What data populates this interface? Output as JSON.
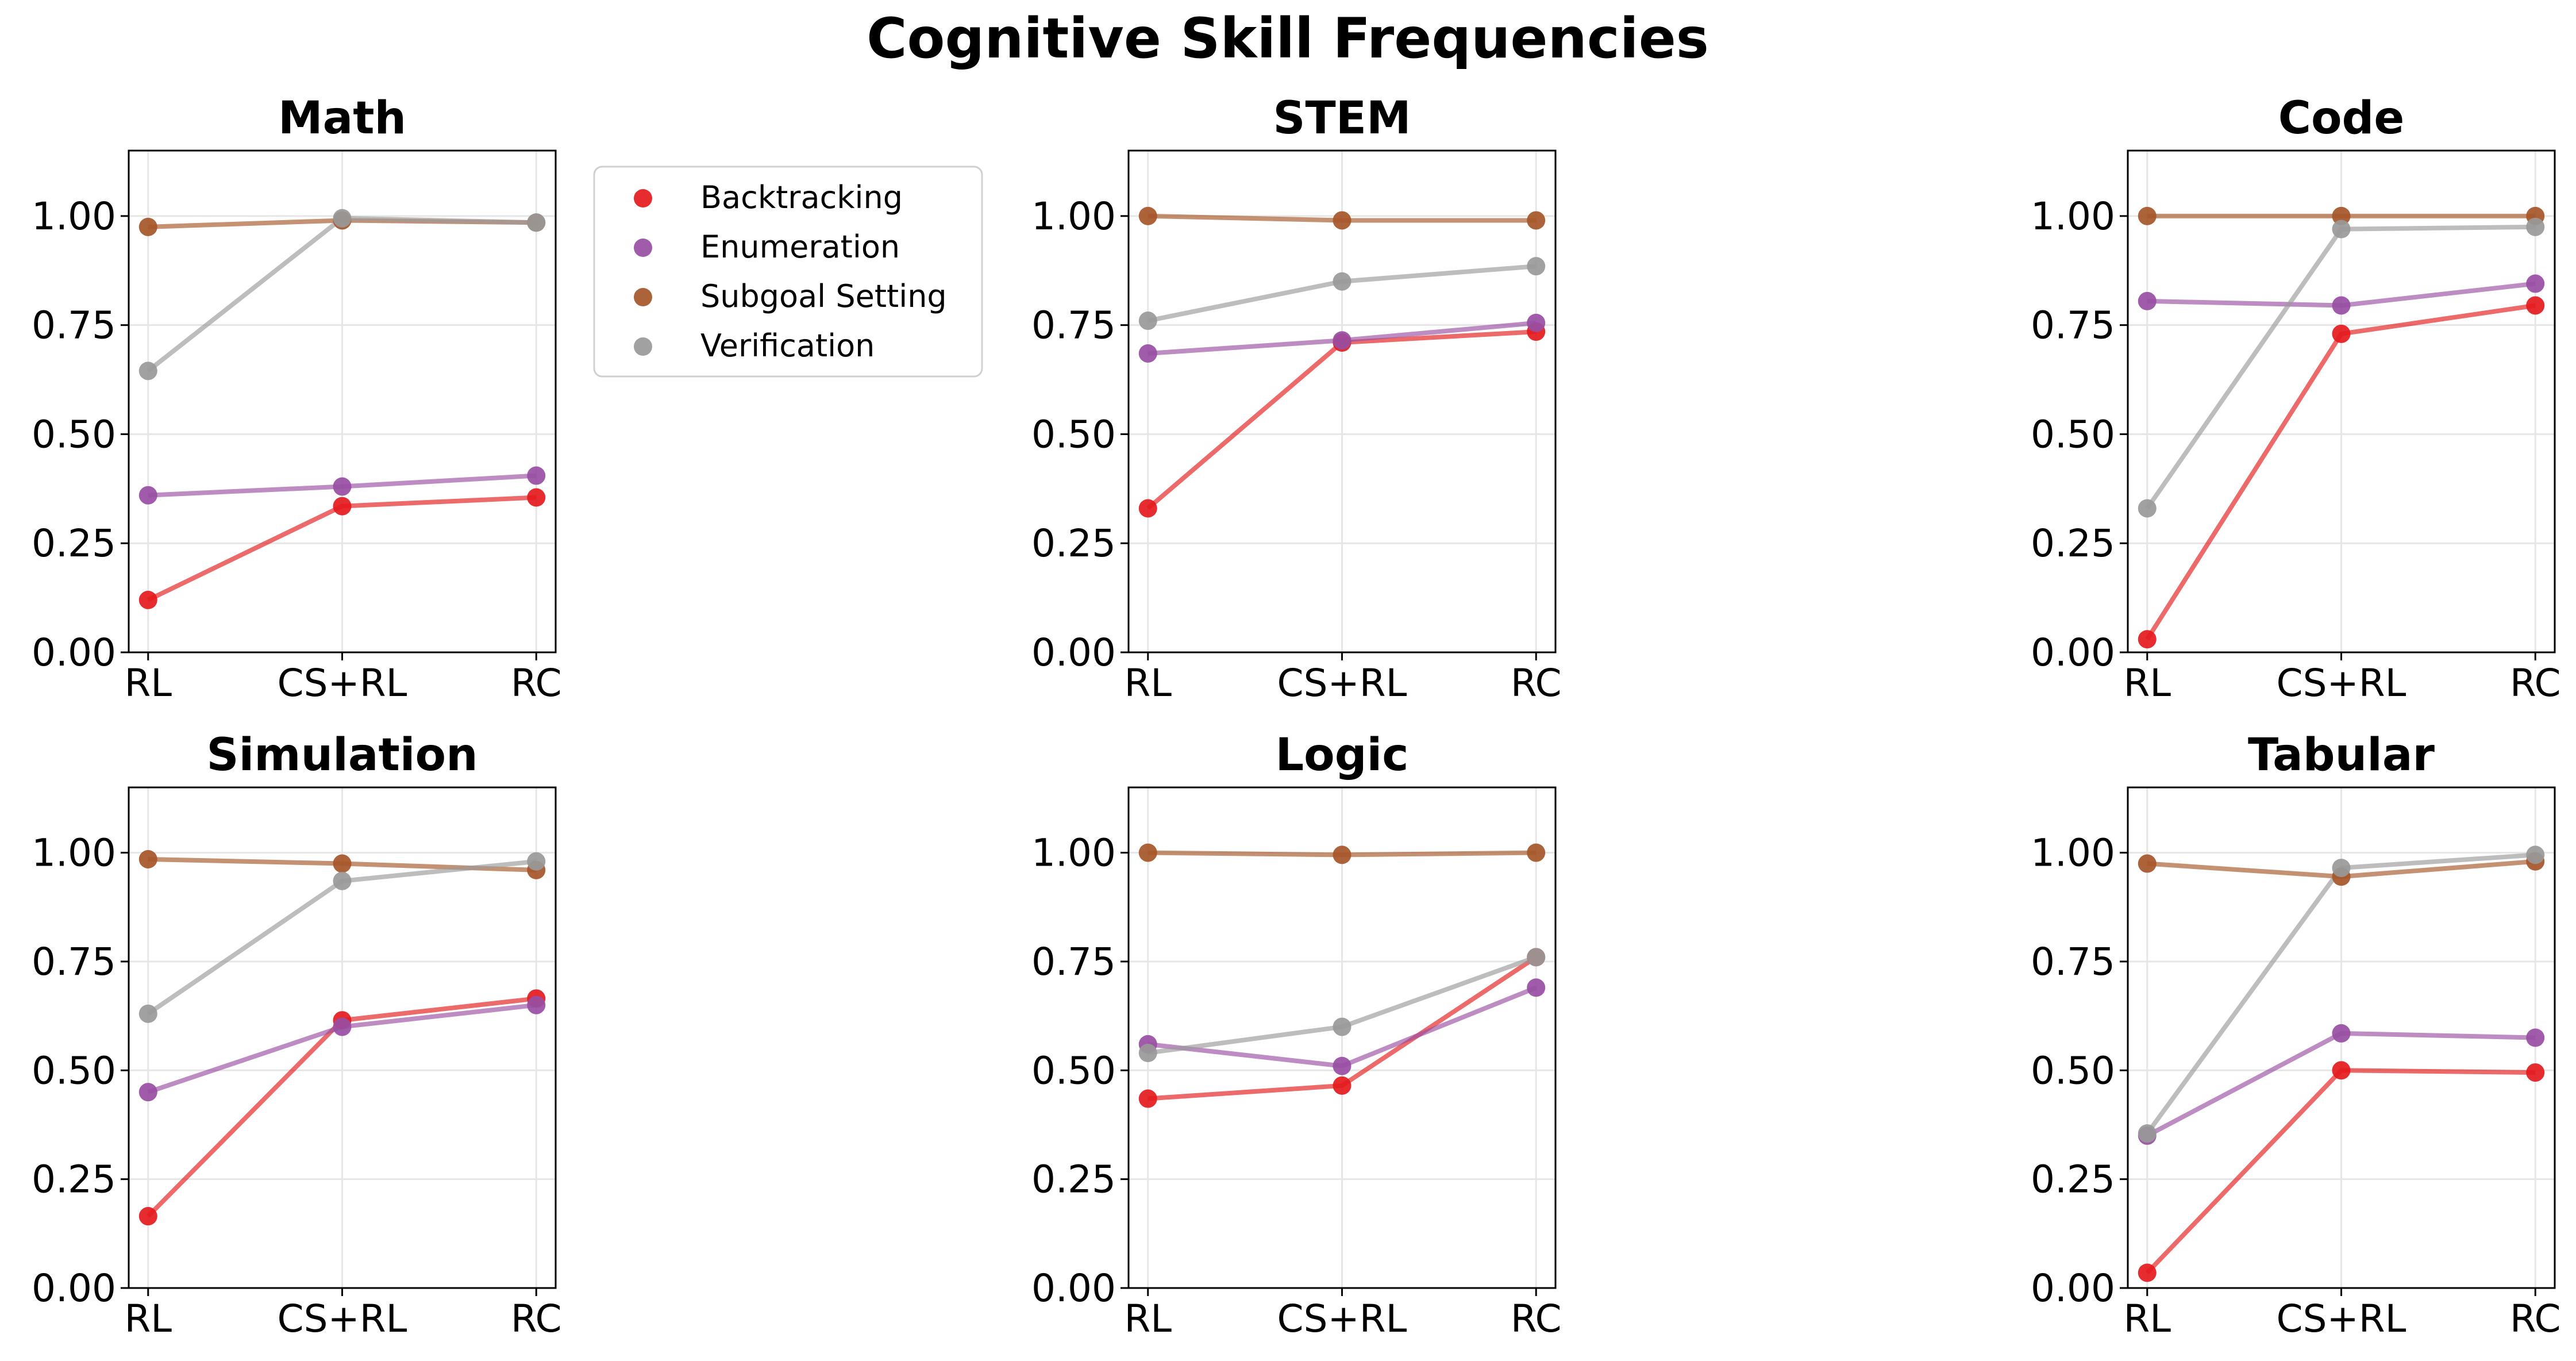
{
  "title": "Cognitive Skill Frequencies",
  "colors": {
    "Backtracking": "#e41a1c",
    "Enumeration": "#984ea3",
    "Subgoal Setting": "#a65628",
    "Verification": "#999999"
  },
  "legend": {
    "placement": "right of Math panel",
    "entries": [
      "Backtracking",
      "Enumeration",
      "Subgoal Setting",
      "Verification"
    ]
  },
  "chart_data": [
    {
      "type": "line",
      "title": "Math",
      "categories": [
        "RL",
        "CS+RL",
        "RC"
      ],
      "yticks": [
        "0.00",
        "0.25",
        "0.50",
        "0.75",
        "1.00"
      ],
      "ylim": [
        0,
        1.15
      ],
      "grid": true,
      "series": [
        {
          "name": "Backtracking",
          "values": [
            0.12,
            0.335,
            0.355
          ]
        },
        {
          "name": "Enumeration",
          "values": [
            0.36,
            0.38,
            0.405
          ]
        },
        {
          "name": "Subgoal Setting",
          "values": [
            0.975,
            0.99,
            0.985
          ]
        },
        {
          "name": "Verification",
          "values": [
            0.645,
            0.995,
            0.985
          ]
        }
      ]
    },
    {
      "type": "line",
      "title": "STEM",
      "categories": [
        "RL",
        "CS+RL",
        "RC"
      ],
      "yticks": [
        "0.00",
        "0.25",
        "0.50",
        "0.75",
        "1.00"
      ],
      "ylim": [
        0,
        1.15
      ],
      "grid": true,
      "series": [
        {
          "name": "Backtracking",
          "values": [
            0.33,
            0.71,
            0.735
          ]
        },
        {
          "name": "Enumeration",
          "values": [
            0.685,
            0.715,
            0.755
          ]
        },
        {
          "name": "Subgoal Setting",
          "values": [
            1.0,
            0.99,
            0.99
          ]
        },
        {
          "name": "Verification",
          "values": [
            0.76,
            0.85,
            0.885
          ]
        }
      ]
    },
    {
      "type": "line",
      "title": "Code",
      "categories": [
        "RL",
        "CS+RL",
        "RC"
      ],
      "yticks": [
        "0.00",
        "0.25",
        "0.50",
        "0.75",
        "1.00"
      ],
      "ylim": [
        0,
        1.15
      ],
      "grid": true,
      "series": [
        {
          "name": "Backtracking",
          "values": [
            0.03,
            0.73,
            0.795
          ]
        },
        {
          "name": "Enumeration",
          "values": [
            0.805,
            0.795,
            0.845
          ]
        },
        {
          "name": "Subgoal Setting",
          "values": [
            1.0,
            1.0,
            1.0
          ]
        },
        {
          "name": "Verification",
          "values": [
            0.33,
            0.97,
            0.975
          ]
        }
      ]
    },
    {
      "type": "line",
      "title": "Simulation",
      "categories": [
        "RL",
        "CS+RL",
        "RC"
      ],
      "yticks": [
        "0.00",
        "0.25",
        "0.50",
        "0.75",
        "1.00"
      ],
      "ylim": [
        0,
        1.15
      ],
      "grid": true,
      "series": [
        {
          "name": "Backtracking",
          "values": [
            0.165,
            0.615,
            0.665
          ]
        },
        {
          "name": "Enumeration",
          "values": [
            0.45,
            0.6,
            0.65
          ]
        },
        {
          "name": "Subgoal Setting",
          "values": [
            0.985,
            0.975,
            0.96
          ]
        },
        {
          "name": "Verification",
          "values": [
            0.63,
            0.935,
            0.98
          ]
        }
      ]
    },
    {
      "type": "line",
      "title": "Logic",
      "categories": [
        "RL",
        "CS+RL",
        "RC"
      ],
      "yticks": [
        "0.00",
        "0.25",
        "0.50",
        "0.75",
        "1.00"
      ],
      "ylim": [
        0,
        1.15
      ],
      "grid": true,
      "series": [
        {
          "name": "Backtracking",
          "values": [
            0.435,
            0.465,
            0.76
          ]
        },
        {
          "name": "Enumeration",
          "values": [
            0.56,
            0.51,
            0.69
          ]
        },
        {
          "name": "Subgoal Setting",
          "values": [
            1.0,
            0.995,
            1.0
          ]
        },
        {
          "name": "Verification",
          "values": [
            0.54,
            0.6,
            0.76
          ]
        }
      ]
    },
    {
      "type": "line",
      "title": "Tabular",
      "categories": [
        "RL",
        "CS+RL",
        "RC"
      ],
      "yticks": [
        "0.00",
        "0.25",
        "0.50",
        "0.75",
        "1.00"
      ],
      "ylim": [
        0,
        1.15
      ],
      "grid": true,
      "series": [
        {
          "name": "Backtracking",
          "values": [
            0.035,
            0.5,
            0.495
          ]
        },
        {
          "name": "Enumeration",
          "values": [
            0.35,
            0.585,
            0.575
          ]
        },
        {
          "name": "Subgoal Setting",
          "values": [
            0.975,
            0.945,
            0.98
          ]
        },
        {
          "name": "Verification",
          "values": [
            0.355,
            0.965,
            0.995
          ]
        }
      ]
    }
  ]
}
